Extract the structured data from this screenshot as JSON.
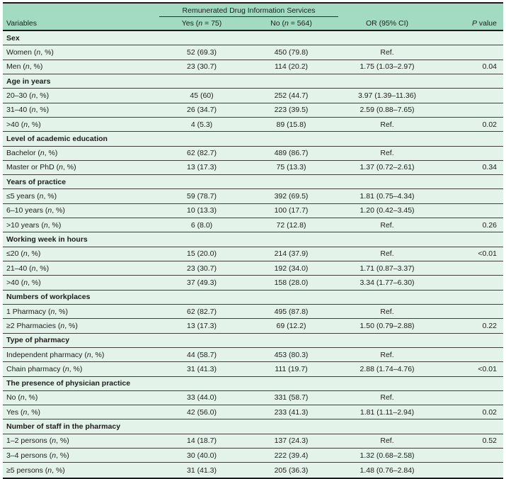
{
  "colors": {
    "header_bg": "#a2dbc1",
    "row_bg": "#e3f3ea",
    "rule_dark": "#1b1b1b",
    "rule_light": "#3f3f3f"
  },
  "table": {
    "spanner": "Remunerated Drug Information Services",
    "columns": [
      "Variables",
      "Yes (n = 75)",
      "No (n = 564)",
      "OR (95% CI)",
      "P value"
    ],
    "sections": [
      {
        "title": "Sex",
        "rows": [
          {
            "label": "Women (n, %)",
            "yes": "52 (69.3)",
            "no": "450 (79.8)",
            "or": "Ref.",
            "p": ""
          },
          {
            "label": "Men (n, %)",
            "yes": "23 (30.7)",
            "no": "114 (20.2)",
            "or": "1.75 (1.03–2.97)",
            "p": "0.04"
          }
        ]
      },
      {
        "title": "Age in years",
        "rows": [
          {
            "label": "20–30 (n, %)",
            "yes": "45 (60)",
            "no": "252 (44.7)",
            "or": "3.97 (1.39–11.36)",
            "p": ""
          },
          {
            "label": "31–40 (n, %)",
            "yes": "26 (34.7)",
            "no": "223 (39.5)",
            "or": "2.59 (0.88–7.65)",
            "p": ""
          },
          {
            "label": ">40 (n, %)",
            "yes": "4 (5.3)",
            "no": "89 (15.8)",
            "or": "Ref.",
            "p": "0.02"
          }
        ]
      },
      {
        "title": "Level of academic education",
        "rows": [
          {
            "label": "Bachelor (n, %)",
            "yes": "62 (82.7)",
            "no": "489 (86.7)",
            "or": "Ref.",
            "p": ""
          },
          {
            "label": "Master or PhD (n, %)",
            "yes": "13 (17.3)",
            "no": "75 (13.3)",
            "or": "1.37 (0.72–2.61)",
            "p": "0.34"
          }
        ]
      },
      {
        "title": "Years of practice",
        "rows": [
          {
            "label": "≤5 years (n, %)",
            "yes": "59 (78.7)",
            "no": "392 (69.5)",
            "or": "1.81 (0.75–4.34)",
            "p": ""
          },
          {
            "label": "6–10 years (n, %)",
            "yes": "10 (13.3)",
            "no": "100 (17.7)",
            "or": "1.20 (0.42–3.45)",
            "p": ""
          },
          {
            "label": ">10 years (n, %)",
            "yes": "6 (8.0)",
            "no": "72 (12.8)",
            "or": "Ref.",
            "p": "0.26"
          }
        ]
      },
      {
        "title": "Working week in hours",
        "rows": [
          {
            "label": "≤20 (n, %)",
            "yes": "15 (20.0)",
            "no": "214 (37.9)",
            "or": "Ref.",
            "p": "<0.01"
          },
          {
            "label": "21–40 (n, %)",
            "yes": "23 (30.7)",
            "no": "192 (34.0)",
            "or": "1.71 (0.87–3.37)",
            "p": ""
          },
          {
            "label": ">40 (n, %)",
            "yes": "37 (49.3)",
            "no": "158 (28.0)",
            "or": "3.34 (1.77–6.30)",
            "p": ""
          }
        ]
      },
      {
        "title": "Numbers of workplaces",
        "rows": [
          {
            "label": "1 Pharmacy (n, %)",
            "yes": "62 (82.7)",
            "no": "495 (87.8)",
            "or": "Ref.",
            "p": ""
          },
          {
            "label": "≥2 Pharmacies (n, %)",
            "yes": "13 (17.3)",
            "no": "69 (12.2)",
            "or": "1.50 (0.79–2.88)",
            "p": "0.22"
          }
        ]
      },
      {
        "title": "Type of pharmacy",
        "rows": [
          {
            "label": "Independent pharmacy (n, %)",
            "yes": "44 (58.7)",
            "no": "453 (80.3)",
            "or": "Ref.",
            "p": ""
          },
          {
            "label": "Chain pharmacy (n, %)",
            "yes": "31 (41.3)",
            "no": "111 (19.7)",
            "or": "2.88 (1.74–4.76)",
            "p": "<0.01"
          }
        ]
      },
      {
        "title": "The presence of physician practice",
        "rows": [
          {
            "label": "No (n, %)",
            "yes": "33 (44.0)",
            "no": "331 (58.7)",
            "or": "Ref.",
            "p": ""
          },
          {
            "label": "Yes (n, %)",
            "yes": "42 (56.0)",
            "no": "233 (41.3)",
            "or": "1.81 (1.11–2.94)",
            "p": "0.02"
          }
        ]
      },
      {
        "title": "Number of staff in the pharmacy",
        "rows": [
          {
            "label": "1–2 persons (n, %)",
            "yes": "14 (18.7)",
            "no": "137 (24.3)",
            "or": "Ref.",
            "p": "0.52"
          },
          {
            "label": "3–4 persons (n, %)",
            "yes": "30 (40.0)",
            "no": "222 (39.4)",
            "or": "1.32 (0.68–2.58)",
            "p": ""
          },
          {
            "label": "≥5 persons (n, %)",
            "yes": "31 (41.3)",
            "no": "205 (36.3)",
            "or": "1.48 (0.76–2.84)",
            "p": ""
          }
        ]
      }
    ]
  }
}
